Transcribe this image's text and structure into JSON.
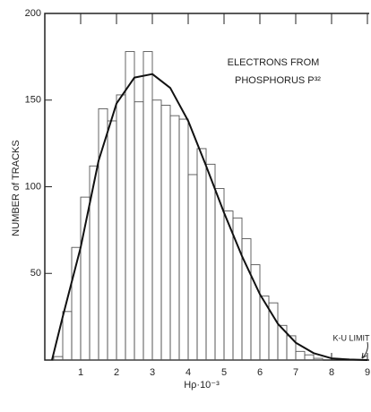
{
  "chart_data": {
    "type": "histogram",
    "title_lines": [
      "ELECTRONS FROM",
      "PHOSPHORUS P³²"
    ],
    "ylabel": "NUMBER of TRACKS",
    "xlabel": "Hρ·10⁻³",
    "annotation": "K-U LIMIT",
    "bins": [
      0.25,
      0.5,
      0.75,
      1.0,
      1.25,
      1.5,
      1.75,
      2.0,
      2.25,
      2.5,
      2.75,
      3.0,
      3.25,
      3.5,
      3.75,
      4.0,
      4.25,
      4.5,
      4.75,
      5.0,
      5.25,
      5.5,
      5.75,
      6.0,
      6.25,
      6.5,
      6.75,
      7.0,
      7.25,
      7.5,
      7.75
    ],
    "counts": [
      2,
      28,
      65,
      94,
      112,
      145,
      138,
      153,
      178,
      149,
      178,
      150,
      147,
      141,
      139,
      107,
      122,
      113,
      99,
      86,
      82,
      70,
      55,
      37,
      33,
      20,
      14,
      5,
      3,
      1
    ],
    "curve": {
      "x": [
        0.2,
        0.5,
        1,
        1.5,
        2,
        2.5,
        3,
        3.5,
        4,
        4.5,
        5,
        5.5,
        6,
        6.5,
        7,
        7.5,
        8,
        8.5,
        9
      ],
      "values": [
        0,
        25,
        65,
        115,
        148,
        163,
        165,
        157,
        138,
        112,
        85,
        60,
        38,
        21,
        10,
        4,
        1,
        0.3,
        0
      ]
    },
    "color": "#111111",
    "xlim": [
      0,
      9.05
    ],
    "ylim": [
      0,
      200
    ],
    "xticks": [
      1,
      2,
      3,
      4,
      5,
      6,
      7,
      8,
      9
    ],
    "yticks": [
      50,
      100,
      150,
      200
    ]
  }
}
